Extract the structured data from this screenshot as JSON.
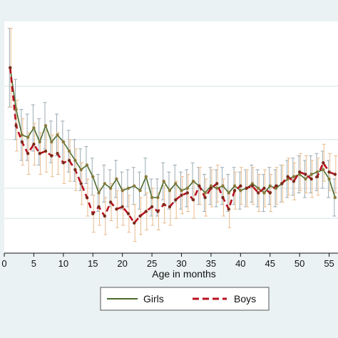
{
  "chart_data": {
    "type": "line",
    "title": "",
    "xlabel": "Age in months",
    "ylabel": "",
    "x_ticks": [
      0,
      5,
      10,
      15,
      20,
      25,
      30,
      35,
      40,
      45,
      50,
      55
    ],
    "x_tick_labels": [
      "0",
      "5",
      "10",
      "15",
      "20",
      "25",
      "30",
      "35",
      "40",
      "45",
      "50",
      "55"
    ],
    "xlim": [
      0,
      56.5
    ],
    "ylim": [
      0,
      1
    ],
    "y_gridlines": [
      0.15,
      0.28,
      0.49,
      0.72
    ],
    "grid": true,
    "legend_position": "bottom",
    "x": [
      1,
      2,
      3,
      4,
      5,
      6,
      7,
      8,
      9,
      10,
      11,
      12,
      13,
      14,
      15,
      16,
      17,
      18,
      19,
      20,
      21,
      22,
      23,
      24,
      25,
      26,
      27,
      28,
      29,
      30,
      31,
      32,
      33,
      34,
      35,
      36,
      37,
      38,
      39,
      40,
      41,
      42,
      43,
      44,
      45,
      46,
      47,
      48,
      49,
      50,
      51,
      52,
      53,
      54,
      55,
      56
    ],
    "series": [
      {
        "name": "Girls",
        "color": "#4a6b2c",
        "style": "solid",
        "values": [
          0.8,
          0.62,
          0.51,
          0.5,
          0.54,
          0.48,
          0.55,
          0.48,
          0.51,
          0.48,
          0.44,
          0.4,
          0.36,
          0.38,
          0.33,
          0.26,
          0.3,
          0.28,
          0.32,
          0.27,
          0.28,
          0.29,
          0.27,
          0.33,
          0.24,
          0.24,
          0.31,
          0.27,
          0.3,
          0.27,
          0.28,
          0.31,
          0.29,
          0.26,
          0.29,
          0.28,
          0.29,
          0.26,
          0.29,
          0.27,
          0.28,
          0.3,
          0.28,
          0.26,
          0.29,
          0.28,
          0.3,
          0.32,
          0.33,
          0.34,
          0.32,
          0.34,
          0.35,
          0.36,
          0.32,
          0.24
        ],
        "error": [
          0.17,
          0.13,
          0.11,
          0.1,
          0.1,
          0.1,
          0.1,
          0.09,
          0.09,
          0.09,
          0.09,
          0.09,
          0.09,
          0.08,
          0.08,
          0.08,
          0.08,
          0.08,
          0.08,
          0.08,
          0.08,
          0.08,
          0.08,
          0.08,
          0.08,
          0.08,
          0.08,
          0.08,
          0.08,
          0.08,
          0.08,
          0.08,
          0.08,
          0.08,
          0.08,
          0.08,
          0.08,
          0.08,
          0.08,
          0.08,
          0.08,
          0.08,
          0.08,
          0.08,
          0.08,
          0.08,
          0.08,
          0.08,
          0.08,
          0.08,
          0.08,
          0.08,
          0.08,
          0.08,
          0.08,
          0.08
        ]
      },
      {
        "name": "Boys",
        "color": "#b8101f",
        "style": "dashed",
        "values": [
          0.8,
          0.55,
          0.48,
          0.43,
          0.47,
          0.43,
          0.44,
          0.42,
          0.43,
          0.39,
          0.4,
          0.36,
          0.3,
          0.24,
          0.17,
          0.2,
          0.16,
          0.22,
          0.19,
          0.2,
          0.17,
          0.13,
          0.16,
          0.18,
          0.2,
          0.18,
          0.21,
          0.2,
          0.23,
          0.25,
          0.26,
          0.23,
          0.29,
          0.24,
          0.28,
          0.3,
          0.24,
          0.19,
          0.27,
          0.29,
          0.28,
          0.29,
          0.26,
          0.28,
          0.26,
          0.29,
          0.3,
          0.33,
          0.31,
          0.35,
          0.34,
          0.32,
          0.33,
          0.39,
          0.35,
          0.34
        ],
        "error": [
          0.17,
          0.11,
          0.1,
          0.09,
          0.09,
          0.09,
          0.09,
          0.09,
          0.09,
          0.09,
          0.09,
          0.09,
          0.09,
          0.08,
          0.08,
          0.08,
          0.08,
          0.08,
          0.08,
          0.08,
          0.08,
          0.08,
          0.08,
          0.08,
          0.08,
          0.08,
          0.08,
          0.08,
          0.08,
          0.08,
          0.08,
          0.08,
          0.08,
          0.08,
          0.08,
          0.08,
          0.08,
          0.08,
          0.08,
          0.08,
          0.08,
          0.08,
          0.08,
          0.08,
          0.08,
          0.08,
          0.08,
          0.08,
          0.08,
          0.08,
          0.08,
          0.08,
          0.08,
          0.08,
          0.08,
          0.08
        ]
      }
    ],
    "colors": {
      "background": "#eaf2f3",
      "plot_background": "#ffffff",
      "grid": "#dfe8ea",
      "girls_error_bar": "#9aaab2",
      "boys_error_bar": "#e9bb8c"
    }
  },
  "legend": {
    "girls_label": "Girls",
    "boys_label": "Boys"
  }
}
